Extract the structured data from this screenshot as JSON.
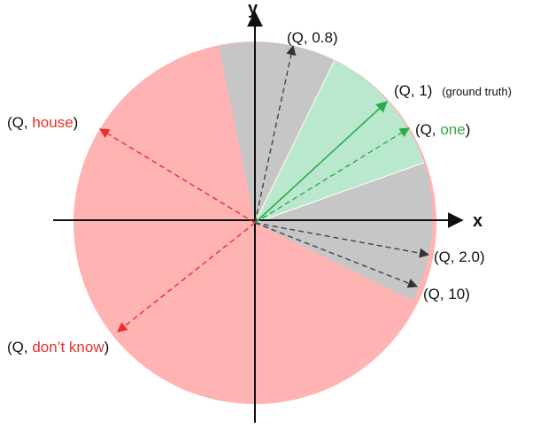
{
  "axes": {
    "x_label": "x",
    "y_label": "y"
  },
  "labels": {
    "q08": "(Q, 0.8)",
    "q1": "(Q, 1)",
    "ground_truth": "(ground truth)",
    "q_one_prefix": "(Q, ",
    "q_one_word": "one",
    "q_one_suffix": ")",
    "q_house_prefix": "(Q, ",
    "q_house_word": "house",
    "q_house_suffix": ")",
    "q20": "(Q, 2.0)",
    "q10": "(Q, 10)",
    "q_dk_prefix": "(Q, ",
    "q_dk_word": "don’t know",
    "q_dk_suffix": ")"
  },
  "colors": {
    "red_region": "#ffb3b3",
    "gray_region": "#c6c6c6",
    "green_region": "#b9e8cf",
    "red_text": "#e8302a",
    "green_text": "#2eaa4a",
    "dashed_gray": "#444444"
  }
}
